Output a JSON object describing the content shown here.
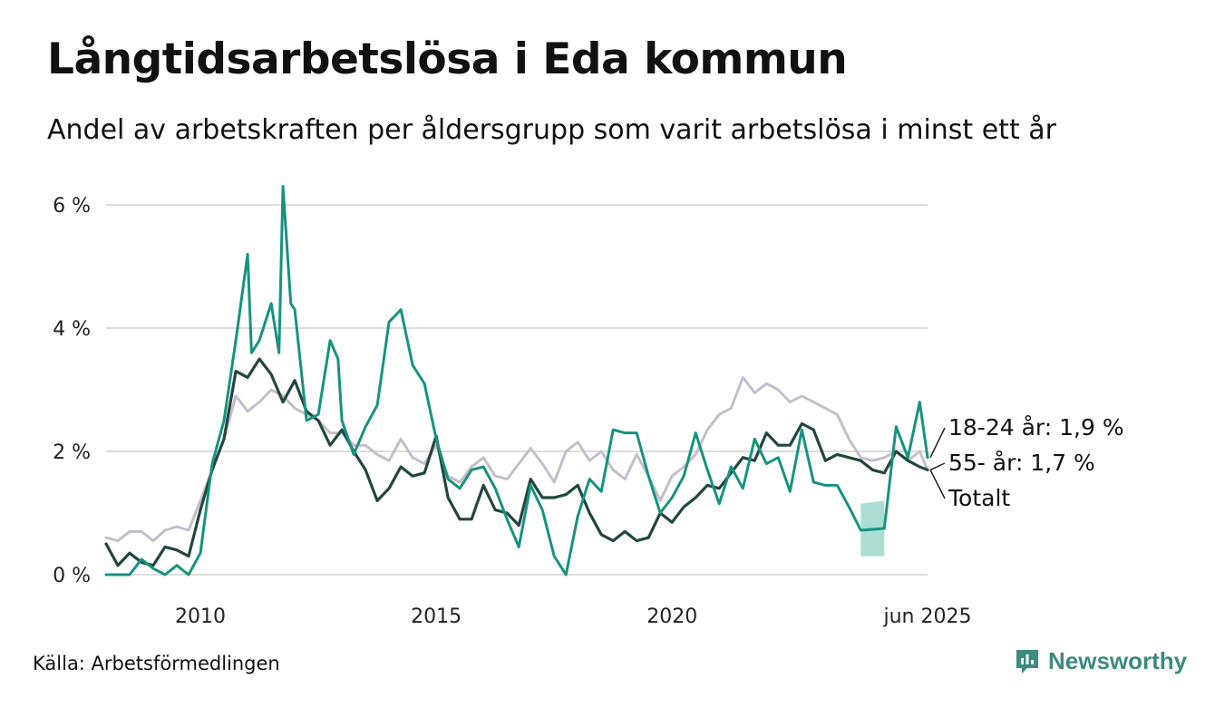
{
  "title": "Långtidsarbetslösa i Eda kommun",
  "subtitle": "Andel av arbetskraften per åldersgrupp som varit arbetslösa i minst ett år",
  "source": "Källa: Arbetsförmedlingen",
  "brand": "Newsworthy",
  "colors": {
    "youth": "#17937f",
    "old": "#c4bfcc",
    "total": "#23463f",
    "band": "#9cd7cb",
    "grid": "#dddddd",
    "brand": "#3d8b7d"
  },
  "chart_data": {
    "type": "line",
    "ylim": [
      0,
      6.2
    ],
    "xlim": [
      "2008-01",
      "2025-06"
    ],
    "yticks": [
      0,
      2,
      4,
      6
    ],
    "ytick_labels": [
      "0 %",
      "2 %",
      "4 %",
      "6 %"
    ],
    "xticks": [
      "2010-01",
      "2015-01",
      "2020-01",
      "2025-06"
    ],
    "xtick_labels": [
      "2010",
      "2015",
      "2020",
      "jun 2025"
    ],
    "end_labels": {
      "youth": "18-24 år: 1,9 %",
      "old": "55- år: 1,7 %",
      "total": "Totalt"
    },
    "band": {
      "from": "2024-01",
      "to": "2024-07",
      "lower": [
        0.3,
        0.3
      ],
      "upper": [
        1.15,
        1.2
      ]
    },
    "series": [
      {
        "key": "old",
        "points": [
          [
            "2008-01",
            0.6
          ],
          [
            "2008-04",
            0.55
          ],
          [
            "2008-07",
            0.7
          ],
          [
            "2008-10",
            0.7
          ],
          [
            "2009-01",
            0.55
          ],
          [
            "2009-04",
            0.72
          ],
          [
            "2009-07",
            0.78
          ],
          [
            "2009-10",
            0.72
          ],
          [
            "2010-01",
            1.2
          ],
          [
            "2010-04",
            1.7
          ],
          [
            "2010-07",
            2.2
          ],
          [
            "2010-10",
            2.9
          ],
          [
            "2011-01",
            2.65
          ],
          [
            "2011-04",
            2.8
          ],
          [
            "2011-07",
            3.0
          ],
          [
            "2011-10",
            2.9
          ],
          [
            "2012-01",
            2.7
          ],
          [
            "2012-04",
            2.6
          ],
          [
            "2012-07",
            2.5
          ],
          [
            "2012-10",
            2.3
          ],
          [
            "2013-01",
            2.3
          ],
          [
            "2013-04",
            2.1
          ],
          [
            "2013-07",
            2.1
          ],
          [
            "2013-10",
            1.95
          ],
          [
            "2014-01",
            1.85
          ],
          [
            "2014-04",
            2.2
          ],
          [
            "2014-07",
            1.9
          ],
          [
            "2014-10",
            1.8
          ],
          [
            "2015-01",
            2.1
          ],
          [
            "2015-04",
            1.6
          ],
          [
            "2015-07",
            1.5
          ],
          [
            "2015-10",
            1.75
          ],
          [
            "2016-01",
            1.9
          ],
          [
            "2016-04",
            1.6
          ],
          [
            "2016-07",
            1.55
          ],
          [
            "2016-10",
            1.8
          ],
          [
            "2017-01",
            2.05
          ],
          [
            "2017-04",
            1.8
          ],
          [
            "2017-07",
            1.5
          ],
          [
            "2017-10",
            2.0
          ],
          [
            "2018-01",
            2.15
          ],
          [
            "2018-04",
            1.85
          ],
          [
            "2018-07",
            2.0
          ],
          [
            "2018-10",
            1.7
          ],
          [
            "2019-01",
            1.55
          ],
          [
            "2019-04",
            1.95
          ],
          [
            "2019-07",
            1.6
          ],
          [
            "2019-10",
            1.2
          ],
          [
            "2020-01",
            1.6
          ],
          [
            "2020-04",
            1.75
          ],
          [
            "2020-07",
            1.95
          ],
          [
            "2020-10",
            2.35
          ],
          [
            "2021-01",
            2.6
          ],
          [
            "2021-04",
            2.7
          ],
          [
            "2021-07",
            3.2
          ],
          [
            "2021-10",
            2.95
          ],
          [
            "2022-01",
            3.1
          ],
          [
            "2022-04",
            3.0
          ],
          [
            "2022-07",
            2.8
          ],
          [
            "2022-10",
            2.9
          ],
          [
            "2023-01",
            2.8
          ],
          [
            "2023-04",
            2.7
          ],
          [
            "2023-07",
            2.6
          ],
          [
            "2023-10",
            2.2
          ],
          [
            "2024-01",
            1.9
          ],
          [
            "2024-04",
            1.85
          ],
          [
            "2024-07",
            1.9
          ],
          [
            "2024-10",
            2.0
          ],
          [
            "2025-01",
            1.85
          ],
          [
            "2025-04",
            2.0
          ],
          [
            "2025-06",
            1.7
          ]
        ]
      },
      {
        "key": "total",
        "points": [
          [
            "2008-01",
            0.5
          ],
          [
            "2008-04",
            0.15
          ],
          [
            "2008-07",
            0.35
          ],
          [
            "2008-10",
            0.2
          ],
          [
            "2009-01",
            0.15
          ],
          [
            "2009-04",
            0.45
          ],
          [
            "2009-07",
            0.4
          ],
          [
            "2009-10",
            0.3
          ],
          [
            "2010-01",
            1.05
          ],
          [
            "2010-04",
            1.7
          ],
          [
            "2010-07",
            2.2
          ],
          [
            "2010-10",
            3.3
          ],
          [
            "2011-01",
            3.2
          ],
          [
            "2011-04",
            3.5
          ],
          [
            "2011-07",
            3.25
          ],
          [
            "2011-10",
            2.8
          ],
          [
            "2012-01",
            3.15
          ],
          [
            "2012-04",
            2.65
          ],
          [
            "2012-07",
            2.5
          ],
          [
            "2012-10",
            2.1
          ],
          [
            "2013-01",
            2.35
          ],
          [
            "2013-04",
            2.0
          ],
          [
            "2013-07",
            1.7
          ],
          [
            "2013-10",
            1.2
          ],
          [
            "2014-01",
            1.4
          ],
          [
            "2014-04",
            1.75
          ],
          [
            "2014-07",
            1.6
          ],
          [
            "2014-10",
            1.65
          ],
          [
            "2015-01",
            2.25
          ],
          [
            "2015-04",
            1.25
          ],
          [
            "2015-07",
            0.9
          ],
          [
            "2015-10",
            0.9
          ],
          [
            "2016-01",
            1.45
          ],
          [
            "2016-04",
            1.05
          ],
          [
            "2016-07",
            1.0
          ],
          [
            "2016-10",
            0.8
          ],
          [
            "2017-01",
            1.55
          ],
          [
            "2017-04",
            1.25
          ],
          [
            "2017-07",
            1.25
          ],
          [
            "2017-10",
            1.3
          ],
          [
            "2018-01",
            1.45
          ],
          [
            "2018-04",
            1.0
          ],
          [
            "2018-07",
            0.65
          ],
          [
            "2018-10",
            0.55
          ],
          [
            "2019-01",
            0.7
          ],
          [
            "2019-04",
            0.55
          ],
          [
            "2019-07",
            0.6
          ],
          [
            "2019-10",
            1.0
          ],
          [
            "2020-01",
            0.85
          ],
          [
            "2020-04",
            1.1
          ],
          [
            "2020-07",
            1.25
          ],
          [
            "2020-10",
            1.45
          ],
          [
            "2021-01",
            1.4
          ],
          [
            "2021-04",
            1.65
          ],
          [
            "2021-07",
            1.9
          ],
          [
            "2021-10",
            1.85
          ],
          [
            "2022-01",
            2.3
          ],
          [
            "2022-04",
            2.1
          ],
          [
            "2022-07",
            2.1
          ],
          [
            "2022-10",
            2.45
          ],
          [
            "2023-01",
            2.35
          ],
          [
            "2023-04",
            1.85
          ],
          [
            "2023-07",
            1.95
          ],
          [
            "2023-10",
            1.9
          ],
          [
            "2024-01",
            1.85
          ],
          [
            "2024-04",
            1.7
          ],
          [
            "2024-07",
            1.65
          ],
          [
            "2024-10",
            2.0
          ],
          [
            "2025-01",
            1.85
          ],
          [
            "2025-04",
            1.75
          ],
          [
            "2025-06",
            1.7
          ]
        ]
      },
      {
        "key": "youth",
        "points": [
          [
            "2008-01",
            0
          ],
          [
            "2008-07",
            0
          ],
          [
            "2008-10",
            0.25
          ],
          [
            "2009-01",
            0.1
          ],
          [
            "2009-04",
            0
          ],
          [
            "2009-07",
            0.15
          ],
          [
            "2009-10",
            0
          ],
          [
            "2010-01",
            0.35
          ],
          [
            "2010-04",
            1.8
          ],
          [
            "2010-07",
            2.5
          ],
          [
            "2010-10",
            3.8
          ],
          [
            "2011-01",
            5.2
          ],
          [
            "2011-02",
            3.6
          ],
          [
            "2011-04",
            3.8
          ],
          [
            "2011-07",
            4.4
          ],
          [
            "2011-09",
            3.6
          ],
          [
            "2011-10",
            6.3
          ],
          [
            "2011-12",
            4.4
          ],
          [
            "2012-01",
            4.3
          ],
          [
            "2012-04",
            2.5
          ],
          [
            "2012-07",
            2.6
          ],
          [
            "2012-10",
            3.8
          ],
          [
            "2012-12",
            3.5
          ],
          [
            "2013-01",
            2.5
          ],
          [
            "2013-04",
            1.95
          ],
          [
            "2013-07",
            2.4
          ],
          [
            "2013-10",
            2.75
          ],
          [
            "2014-01",
            4.1
          ],
          [
            "2014-04",
            4.3
          ],
          [
            "2014-07",
            3.4
          ],
          [
            "2014-10",
            3.1
          ],
          [
            "2015-01",
            2.2
          ],
          [
            "2015-04",
            1.55
          ],
          [
            "2015-07",
            1.4
          ],
          [
            "2015-10",
            1.7
          ],
          [
            "2016-01",
            1.75
          ],
          [
            "2016-04",
            1.4
          ],
          [
            "2016-07",
            0.9
          ],
          [
            "2016-10",
            0.45
          ],
          [
            "2017-01",
            1.45
          ],
          [
            "2017-04",
            1.05
          ],
          [
            "2017-07",
            0.3
          ],
          [
            "2017-10",
            0
          ],
          [
            "2018-01",
            0.95
          ],
          [
            "2018-04",
            1.55
          ],
          [
            "2018-07",
            1.35
          ],
          [
            "2018-10",
            2.35
          ],
          [
            "2019-01",
            2.3
          ],
          [
            "2019-04",
            2.3
          ],
          [
            "2019-07",
            1.6
          ],
          [
            "2019-10",
            1.0
          ],
          [
            "2020-01",
            1.25
          ],
          [
            "2020-04",
            1.6
          ],
          [
            "2020-07",
            2.3
          ],
          [
            "2020-10",
            1.7
          ],
          [
            "2021-01",
            1.15
          ],
          [
            "2021-04",
            1.75
          ],
          [
            "2021-07",
            1.4
          ],
          [
            "2021-10",
            2.2
          ],
          [
            "2022-01",
            1.8
          ],
          [
            "2022-04",
            1.9
          ],
          [
            "2022-07",
            1.35
          ],
          [
            "2022-10",
            2.35
          ],
          [
            "2023-01",
            1.5
          ],
          [
            "2023-04",
            1.45
          ],
          [
            "2023-07",
            1.45
          ],
          [
            "2023-10",
            1.1
          ],
          [
            "2024-01",
            0.72
          ],
          [
            "2024-07",
            0.75
          ],
          [
            "2024-10",
            2.4
          ],
          [
            "2025-01",
            1.9
          ],
          [
            "2025-04",
            2.8
          ],
          [
            "2025-06",
            1.9
          ]
        ]
      }
    ]
  }
}
